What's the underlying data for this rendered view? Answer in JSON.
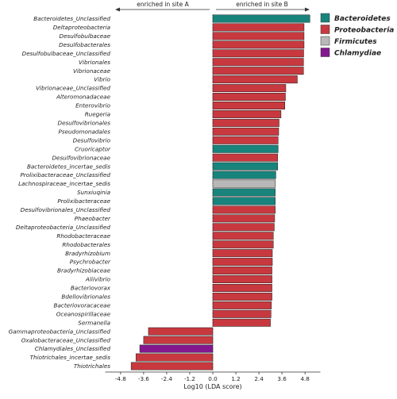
{
  "chart_data": {
    "type": "bar",
    "orientation": "horizontal",
    "xlabel": "Log10 (LDA score)",
    "xlim": [
      -5.6,
      5.6
    ],
    "xticks": [
      -4.8,
      -3.6,
      -2.4,
      -1.2,
      0.0,
      1.2,
      2.4,
      3.6,
      4.8
    ],
    "xtick_labels": [
      "-4.8",
      "-3.6",
      "-2.4",
      "-1.2",
      "0.0",
      "1.2",
      "2.4",
      "3.6",
      "4.8"
    ],
    "direction_labels": {
      "left": "enriched in site A",
      "right": "enriched in site B"
    },
    "legend_position": "top-right",
    "legend": [
      {
        "name": "Bacteroidetes",
        "color": "#18847c"
      },
      {
        "name": "Proteobacteria",
        "color": "#c8393f"
      },
      {
        "name": "Firmicutes",
        "color": "#b8b8b8"
      },
      {
        "name": "Chlamydiae",
        "color": "#84178e"
      }
    ],
    "bars": [
      {
        "label": "Bacteroidetes_Unclassified",
        "value": 5.05,
        "group": "Bacteroidetes"
      },
      {
        "label": "Deltaproteobacteria",
        "value": 4.75,
        "group": "Proteobacteria"
      },
      {
        "label": "Desulfobulbaceae",
        "value": 4.75,
        "group": "Proteobacteria"
      },
      {
        "label": "Desulfobacterales",
        "value": 4.75,
        "group": "Proteobacteria"
      },
      {
        "label": "Desulfobulbaceae_Unclassified",
        "value": 4.73,
        "group": "Proteobacteria"
      },
      {
        "label": "Vibrionales",
        "value": 4.72,
        "group": "Proteobacteria"
      },
      {
        "label": "Vibrionaceae",
        "value": 4.72,
        "group": "Proteobacteria"
      },
      {
        "label": "Vibrio",
        "value": 4.4,
        "group": "Proteobacteria"
      },
      {
        "label": "Vibrionaceae_Unclassified",
        "value": 3.8,
        "group": "Proteobacteria"
      },
      {
        "label": "Alteromonadaceae",
        "value": 3.78,
        "group": "Proteobacteria"
      },
      {
        "label": "Enterovibrio",
        "value": 3.75,
        "group": "Proteobacteria"
      },
      {
        "label": "Ruegeria",
        "value": 3.55,
        "group": "Proteobacteria"
      },
      {
        "label": "Desulfovibrionales",
        "value": 3.45,
        "group": "Proteobacteria"
      },
      {
        "label": "Pseudomonadales",
        "value": 3.43,
        "group": "Proteobacteria"
      },
      {
        "label": "Desulfovibrio",
        "value": 3.4,
        "group": "Proteobacteria"
      },
      {
        "label": "Cruoricaptor",
        "value": 3.4,
        "group": "Bacteroidetes"
      },
      {
        "label": "Desulfovibrionaceae",
        "value": 3.38,
        "group": "Proteobacteria"
      },
      {
        "label": "Bacteroidetes_incertae_sedis",
        "value": 3.38,
        "group": "Bacteroidetes"
      },
      {
        "label": "Prolixibacteraceae_Unclassified",
        "value": 3.28,
        "group": "Bacteroidetes"
      },
      {
        "label": "Lachnospiraceae_incertae_sedis",
        "value": 3.26,
        "group": "Firmicutes"
      },
      {
        "label": "Sunxiuqinia",
        "value": 3.25,
        "group": "Bacteroidetes"
      },
      {
        "label": "Prolixibacteraceae",
        "value": 3.25,
        "group": "Bacteroidetes"
      },
      {
        "label": "Desulfovibrionales_Unclassified",
        "value": 3.25,
        "group": "Proteobacteria"
      },
      {
        "label": "Phaeobacter",
        "value": 3.22,
        "group": "Proteobacteria"
      },
      {
        "label": "Deltaproteobacteria_Unclassified",
        "value": 3.2,
        "group": "Proteobacteria"
      },
      {
        "label": "Rhodobacteraceae",
        "value": 3.15,
        "group": "Proteobacteria"
      },
      {
        "label": "Rhodobacterales",
        "value": 3.15,
        "group": "Proteobacteria"
      },
      {
        "label": "Bradyrhizobium",
        "value": 3.1,
        "group": "Proteobacteria"
      },
      {
        "label": "Psychrobacter",
        "value": 3.1,
        "group": "Proteobacteria"
      },
      {
        "label": "Bradyrhizobiaceae",
        "value": 3.08,
        "group": "Proteobacteria"
      },
      {
        "label": "Aliivibrio",
        "value": 3.08,
        "group": "Proteobacteria"
      },
      {
        "label": "Bacteriovorax",
        "value": 3.08,
        "group": "Proteobacteria"
      },
      {
        "label": "Bdellovibrionales",
        "value": 3.08,
        "group": "Proteobacteria"
      },
      {
        "label": "Bacteriovoracaceae",
        "value": 3.05,
        "group": "Proteobacteria"
      },
      {
        "label": "Oceanospirillaceae",
        "value": 3.03,
        "group": "Proteobacteria"
      },
      {
        "label": "Sermanella",
        "value": 3.0,
        "group": "Proteobacteria"
      },
      {
        "label": "Gammaproteobacteria_Unclassified",
        "value": -3.35,
        "group": "Proteobacteria"
      },
      {
        "label": "Oxalobacteraceae_Unclassified",
        "value": -3.6,
        "group": "Proteobacteria"
      },
      {
        "label": "Chlamydiales_Unclassified",
        "value": -3.8,
        "group": "Chlamydiae"
      },
      {
        "label": "Thiotrichales_incertae_sedis",
        "value": -4.0,
        "group": "Proteobacteria"
      },
      {
        "label": "Thiotrichales",
        "value": -4.25,
        "group": "Proteobacteria"
      }
    ]
  }
}
